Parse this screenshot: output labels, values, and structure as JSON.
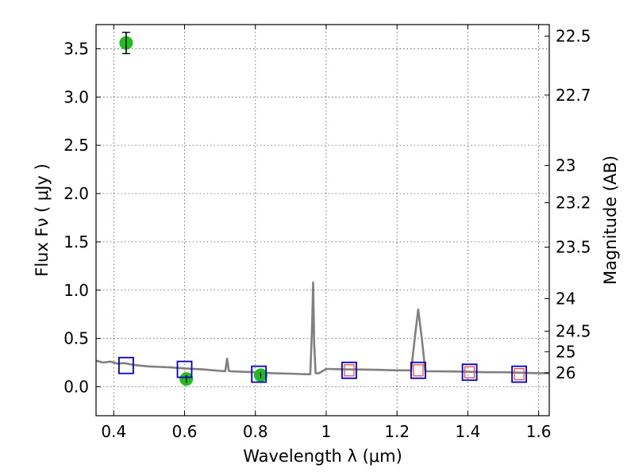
{
  "chart_data": {
    "type": "scatter",
    "title": "",
    "xlabel": "Wavelength  λ (μm)",
    "ylabel": "Flux  Fν  ( μJy )",
    "ylabel_right": "Magnitude (AB)",
    "xlim": [
      0.35,
      1.63
    ],
    "ylim": [
      -0.3,
      3.75
    ],
    "grid": true,
    "x_ticks": [
      0.4,
      0.6,
      0.8,
      1.0,
      1.2,
      1.4,
      1.6
    ],
    "x_tick_labels": [
      "0.4",
      "0.6",
      "0.8",
      "1",
      "1.2",
      "1.4",
      "1.6"
    ],
    "y_ticks": [
      0.0,
      0.5,
      1.0,
      1.5,
      2.0,
      2.5,
      3.0,
      3.5
    ],
    "y_tick_labels": [
      "0.0",
      "0.5",
      "1.0",
      "1.5",
      "2.0",
      "2.5",
      "3.0",
      "3.5"
    ],
    "mag_ticks": [
      22.5,
      22.7,
      23,
      23.2,
      23.5,
      24,
      24.5,
      25,
      26
    ],
    "mag_tick_labels": [
      "22.5",
      "22.7",
      "23",
      "23.2",
      "23.5",
      "24",
      "24.5",
      "25",
      "26"
    ],
    "series": [
      {
        "kind": "line",
        "color": "#808080",
        "x": [
          0.35,
          0.37,
          0.39,
          0.41,
          0.43,
          0.45,
          0.47,
          0.5,
          0.53,
          0.56,
          0.6,
          0.65,
          0.7,
          0.715,
          0.72,
          0.725,
          0.73,
          0.76,
          0.8,
          0.85,
          0.9,
          0.94,
          0.955,
          0.96,
          0.963,
          0.966,
          0.97,
          0.98,
          1.0,
          1.05,
          1.1,
          1.15,
          1.2,
          1.24,
          1.25,
          1.26,
          1.27,
          1.28,
          1.3,
          1.35,
          1.4,
          1.45,
          1.5,
          1.55,
          1.6,
          1.63
        ],
        "y": [
          0.27,
          0.25,
          0.26,
          0.24,
          0.245,
          0.23,
          0.22,
          0.21,
          0.205,
          0.2,
          0.19,
          0.18,
          0.165,
          0.16,
          0.29,
          0.165,
          0.16,
          0.155,
          0.15,
          0.14,
          0.135,
          0.13,
          0.13,
          0.6,
          1.08,
          0.45,
          0.14,
          0.14,
          0.185,
          0.18,
          0.178,
          0.175,
          0.17,
          0.17,
          0.5,
          0.8,
          0.5,
          0.16,
          0.16,
          0.158,
          0.155,
          0.15,
          0.15,
          0.145,
          0.14,
          0.14
        ]
      },
      {
        "kind": "points",
        "marker": "circle",
        "color": "#22bb22",
        "x": [
          0.435,
          0.605,
          0.815
        ],
        "y": [
          3.56,
          0.08,
          0.12
        ],
        "yerr": [
          0.11,
          0.04,
          0.03
        ]
      },
      {
        "kind": "points",
        "marker": "open-square",
        "color": "#0000cc",
        "x": [
          0.435,
          0.6,
          0.81,
          1.065,
          1.26,
          1.405,
          1.545
        ],
        "y": [
          0.22,
          0.18,
          0.13,
          0.17,
          0.17,
          0.15,
          0.13
        ]
      },
      {
        "kind": "points",
        "marker": "open-square-small",
        "color": "#ff4444",
        "x": [
          1.065,
          1.26,
          1.405,
          1.545
        ],
        "y": [
          0.17,
          0.17,
          0.15,
          0.13
        ]
      }
    ]
  }
}
